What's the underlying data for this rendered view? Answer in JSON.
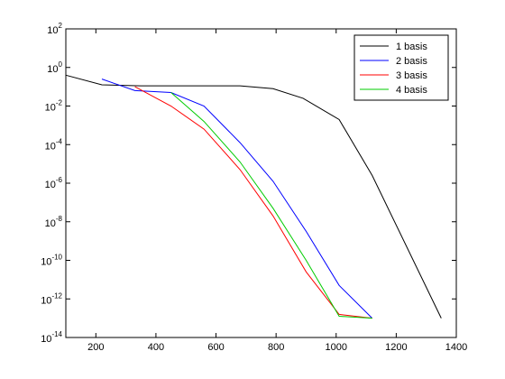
{
  "chart_data": {
    "type": "line",
    "title": "",
    "xlabel": "",
    "ylabel": "",
    "xlim": [
      100,
      1400
    ],
    "ylim_log10": [
      -14,
      2
    ],
    "yscale": "log",
    "grid": false,
    "legend_position": "top-right",
    "x_ticks": [
      200,
      400,
      600,
      800,
      1000,
      1200,
      1400
    ],
    "y_tick_exponents": [
      2,
      0,
      -2,
      -4,
      -6,
      -8,
      -10,
      -12,
      -14
    ],
    "y_tick_base": "10",
    "series": [
      {
        "name": "1 basis",
        "color": "#000000",
        "x": [
          100,
          220,
          350,
          450,
          560,
          680,
          790,
          890,
          1010,
          1120,
          1350
        ],
        "log10_y": [
          -0.4,
          -0.9,
          -0.95,
          -0.95,
          -0.95,
          -0.95,
          -1.1,
          -1.6,
          -2.7,
          -5.6,
          -13.0
        ]
      },
      {
        "name": "2 basis",
        "color": "#0000ff",
        "x": [
          220,
          330,
          450,
          560,
          680,
          790,
          900,
          1010,
          1120
        ],
        "log10_y": [
          -0.6,
          -1.2,
          -1.3,
          -2.0,
          -3.9,
          -5.9,
          -8.5,
          -11.3,
          -13.0
        ]
      },
      {
        "name": "3 basis",
        "color": "#ff0000",
        "x": [
          330,
          450,
          560,
          680,
          790,
          900,
          1010,
          1120
        ],
        "log10_y": [
          -1.0,
          -2.0,
          -3.2,
          -5.3,
          -7.7,
          -10.6,
          -12.8,
          -13.0
        ]
      },
      {
        "name": "4 basis",
        "color": "#00cc00",
        "x": [
          450,
          560,
          680,
          790,
          900,
          1010,
          1120
        ],
        "log10_y": [
          -1.3,
          -2.8,
          -4.9,
          -7.3,
          -10.0,
          -12.9,
          -13.0
        ]
      }
    ]
  }
}
